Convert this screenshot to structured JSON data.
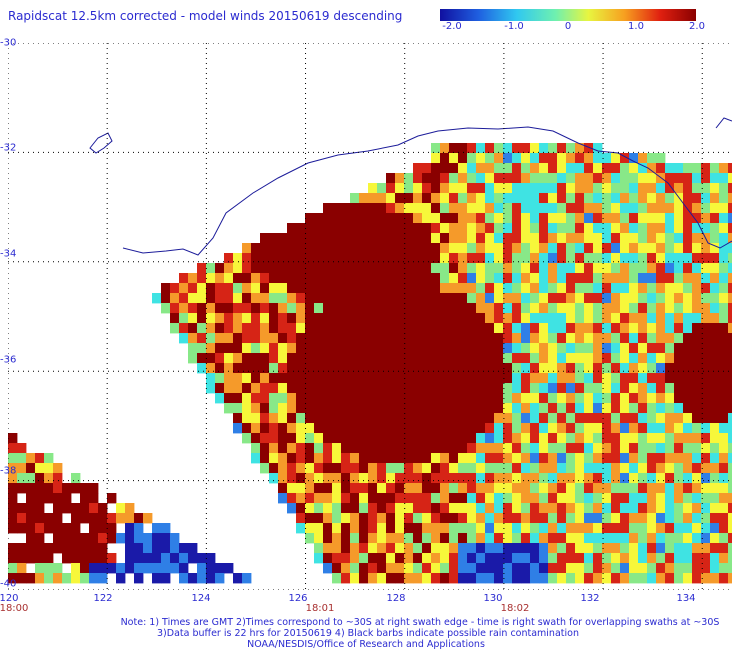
{
  "title": "Rapidscat 12.5km corrected - model winds 20150619 descending",
  "colorbar": {
    "ticks": [
      "-2.0",
      "-1.0",
      "0",
      "1.0",
      "2.0"
    ],
    "range": [
      -2.0,
      2.0
    ],
    "colors": [
      "#1a1aa8",
      "#2f7fe6",
      "#3fe3e3",
      "#88e888",
      "#f7f73a",
      "#f59a2a",
      "#d62416",
      "#8a0000"
    ]
  },
  "map": {
    "lat_labels": [
      "-30",
      "-32",
      "-34",
      "-36",
      "-38",
      "-40"
    ],
    "lat_values": [
      -30,
      -32,
      -34,
      -36,
      -38,
      -40
    ],
    "lon_labels": [
      "120",
      "122",
      "124",
      "126",
      "128",
      "130",
      "132",
      "134"
    ],
    "lon_values": [
      120,
      122,
      124,
      126,
      128,
      130,
      132,
      134
    ],
    "lat_range": [
      -40,
      -30
    ],
    "lon_range": [
      120,
      134.6
    ],
    "grid": "dotted",
    "coastline_color": "#1c1c9a"
  },
  "times": [
    "18:00",
    "18:01",
    "18:02"
  ],
  "time_lons": [
    120,
    126.3,
    130.4
  ],
  "notes": {
    "line1": "Note: 1) Times are GMT 2)Times correspond to ~30S at right swath edge - time is right swath for overlapping swaths at ~30S",
    "line2": "3)Data buffer is 22 hrs for 20150619 4) Black barbs indicate possible rain contamination",
    "line3": "NOAA/NESDIS/Office of Research and Applications"
  }
}
